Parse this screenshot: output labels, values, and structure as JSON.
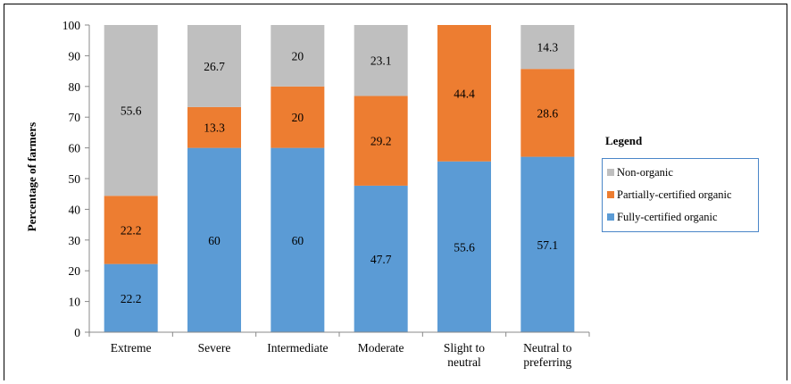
{
  "chart_data": {
    "type": "bar",
    "stacked": true,
    "title": "",
    "xlabel": "",
    "ylabel": "Percentage of farmers",
    "ylim": [
      0,
      100
    ],
    "yticks": [
      0,
      10,
      20,
      30,
      40,
      50,
      60,
      70,
      80,
      90,
      100
    ],
    "grid": false,
    "legend_position": "right",
    "legend_title": "Legend",
    "categories": [
      [
        "Extreme"
      ],
      [
        "Severe"
      ],
      [
        "Intermediate"
      ],
      [
        "Moderate"
      ],
      [
        "Slight to",
        "neutral"
      ],
      [
        "Neutral to",
        "preferring"
      ]
    ],
    "series": [
      {
        "name": "Fully-certified organic",
        "color": "#5b9bd5",
        "values": [
          22.2,
          60,
          60,
          47.7,
          55.6,
          57.1
        ]
      },
      {
        "name": "Partially-certified organic",
        "color": "#ed7d31",
        "values": [
          22.2,
          13.3,
          20,
          29.2,
          44.4,
          28.6
        ]
      },
      {
        "name": "Non-organic",
        "color": "#bfbfbf",
        "values": [
          55.6,
          26.7,
          20,
          23.1,
          null,
          14.3
        ]
      }
    ],
    "legend_order": [
      "Non-organic",
      "Partially-certified organic",
      "Fully-certified organic"
    ]
  }
}
